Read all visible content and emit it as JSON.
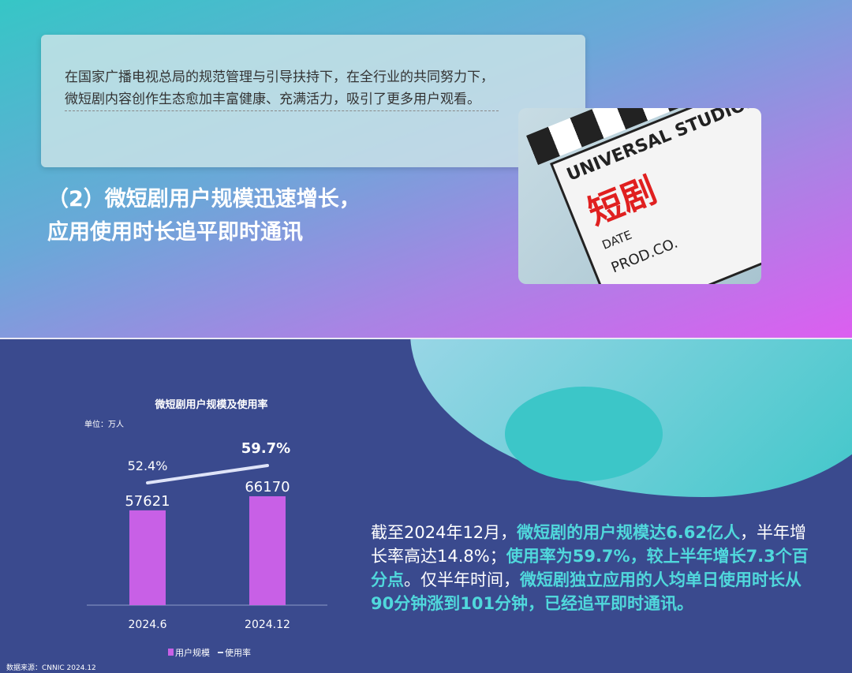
{
  "intro_card": {
    "text": "在国家广播电视总局的规范管理与引导扶持下，在全行业的共同努力下，微短剧内容创作生态愈加丰富健康、充满活力，吸引了更多用户观看。"
  },
  "section_heading": {
    "line1": "（2）微短剧用户规模迅速增长，",
    "line2": "应用使用时长追平即时通讯"
  },
  "photo": {
    "lettering": {
      "studio": "UNIVERSAL STUDIOS",
      "title": "短剧",
      "date": "DATE",
      "prod": "PROD.CO."
    }
  },
  "chart_data": {
    "type": "bar",
    "title": "微短剧用户规模及使用率",
    "unit": "单位：万人",
    "categories": [
      "2024.6",
      "2024.12"
    ],
    "series": [
      {
        "name": "用户规模",
        "type": "bar",
        "values": [
          57621,
          66170
        ],
        "labels": [
          "57621",
          "66170"
        ],
        "color": "#c860e6"
      },
      {
        "name": "使用率",
        "type": "line",
        "values": [
          52.4,
          59.7
        ],
        "labels": [
          "52.4%",
          "59.7%"
        ],
        "color": "#dfe4f8"
      }
    ],
    "legend": "bottom",
    "source": "数据来源：CNNIC 2024.12"
  },
  "paragraph": [
    {
      "t": "截至2024年12月，",
      "h": false
    },
    {
      "t": "微短剧的用户规模达6.62亿人",
      "h": true
    },
    {
      "t": "，半年增长率高达14.8%；",
      "h": false
    },
    {
      "t": "使用率为59.7%，较上半年增长7.3个百分点",
      "h": true
    },
    {
      "t": "。仅半年时间，",
      "h": false
    },
    {
      "t": "微短剧独立应用的人均单日使用时长从90分钟涨到101分钟，已经追平即时通讯。",
      "h": true
    }
  ],
  "colors": {
    "bottom_bg": "#3a4a8e",
    "highlight": "#50d8dc",
    "bar": "#c860e6"
  }
}
